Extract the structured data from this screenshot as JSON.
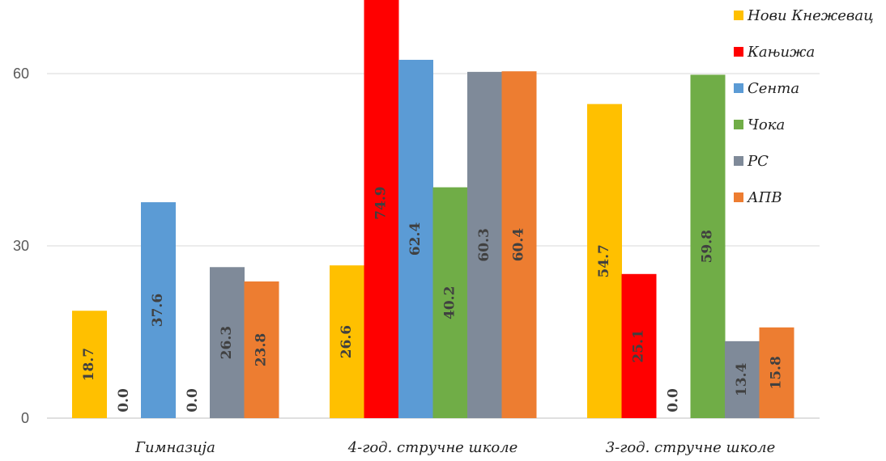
{
  "chart_data": {
    "type": "bar",
    "categories": [
      "Гимназија",
      "4-год. стручне школе",
      "3-год. стручне школе"
    ],
    "series": [
      {
        "name": "Нови Кнежевац",
        "color": "#FFC000",
        "values": [
          18.7,
          26.6,
          54.7
        ]
      },
      {
        "name": "Кањижа",
        "color": "#FF0000",
        "values": [
          0.0,
          74.9,
          25.1
        ]
      },
      {
        "name": "Сента",
        "color": "#5B9BD5",
        "values": [
          37.6,
          62.4,
          0.0
        ]
      },
      {
        "name": "Чока",
        "color": "#70AD47",
        "values": [
          0.0,
          40.2,
          59.8
        ]
      },
      {
        "name": "РС",
        "color": "#7F8A99",
        "values": [
          26.3,
          60.3,
          13.4
        ]
      },
      {
        "name": "АПВ",
        "color": "#ED7D31",
        "values": [
          23.8,
          60.4,
          15.8
        ]
      }
    ],
    "yticks": [
      0,
      30,
      60
    ],
    "ylim": [
      0,
      70
    ],
    "grid": true,
    "legend_position": "top-right",
    "title": "",
    "xlabel": "",
    "ylabel": ""
  }
}
